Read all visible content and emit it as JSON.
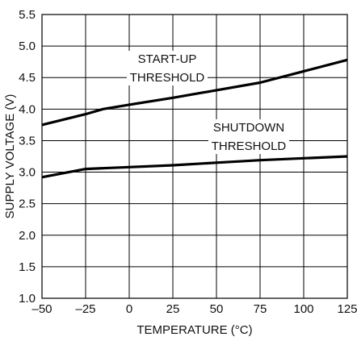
{
  "chart_data": {
    "type": "line",
    "title": "",
    "xlabel": "TEMPERATURE (°C)",
    "ylabel": "SUPPLY VOLTAGE (V)",
    "xlim": [
      -50,
      125
    ],
    "ylim": [
      1.0,
      5.5
    ],
    "x_ticks": [
      "–50",
      "–25",
      "0",
      "25",
      "50",
      "75",
      "100",
      "125"
    ],
    "y_ticks": [
      "1.0",
      "1.5",
      "2.0",
      "2.5",
      "3.0",
      "3.5",
      "4.0",
      "4.5",
      "5.0",
      "5.5"
    ],
    "grid": true,
    "legend": "none",
    "series": [
      {
        "name": "START-UP THRESHOLD",
        "x": [
          -50,
          -25,
          -15,
          0,
          25,
          50,
          75,
          100,
          125
        ],
        "y": [
          3.75,
          3.92,
          4.0,
          4.07,
          4.18,
          4.3,
          4.42,
          4.6,
          4.78
        ]
      },
      {
        "name": "SHUTDOWN THRESHOLD",
        "x": [
          -50,
          -25,
          0,
          25,
          50,
          75,
          100,
          125
        ],
        "y": [
          2.92,
          3.05,
          3.08,
          3.11,
          3.15,
          3.19,
          3.22,
          3.25
        ]
      }
    ],
    "annotations": [
      {
        "lines": [
          "START-UP",
          "THRESHOLD"
        ],
        "series": 0
      },
      {
        "lines": [
          "SHUTDOWN",
          "THRESHOLD"
        ],
        "series": 1
      }
    ],
    "colors": {
      "line": "#000000",
      "grid": "#000000",
      "background": "#ffffff",
      "text": "#111111"
    }
  }
}
